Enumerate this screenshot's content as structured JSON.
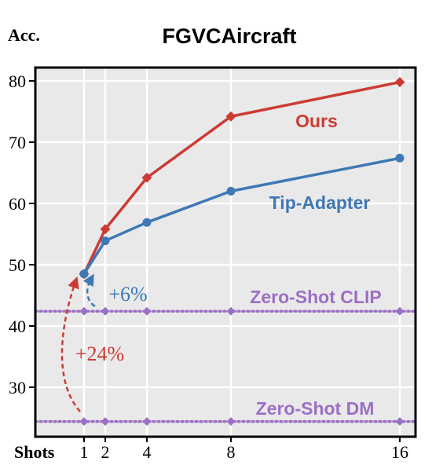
{
  "chart_data": {
    "type": "line",
    "title": "FGVCAircraft",
    "ylabel": "Acc.",
    "xlabel": "Shots",
    "x": [
      1,
      2,
      4,
      8,
      16
    ],
    "x_tick_labels": [
      "1",
      "2",
      "4",
      "8",
      "16"
    ],
    "ylim": [
      23,
      82
    ],
    "y_ticks": [
      30,
      40,
      50,
      60,
      70,
      80
    ],
    "grid": true,
    "series": [
      {
        "name": "Ours",
        "color": "#cc3b33",
        "marker": "diamond",
        "values": [
          48.5,
          55.8,
          64.2,
          74.2,
          79.8
        ]
      },
      {
        "name": "Tip-Adapter",
        "color": "#3e78b5",
        "marker": "circle",
        "values": [
          48.5,
          53.9,
          56.9,
          62.0,
          67.4
        ]
      },
      {
        "name": "Zero-Shot CLIP",
        "color": "#9b6fc5",
        "marker": "diamond",
        "style": "dotted",
        "values": [
          42.4,
          42.4,
          42.4,
          42.4,
          42.4
        ]
      },
      {
        "name": "Zero-Shot DM",
        "color": "#9b6fc5",
        "marker": "diamond",
        "style": "dotted",
        "values": [
          24.4,
          24.4,
          24.4,
          24.4,
          24.4
        ]
      }
    ],
    "annotations": [
      {
        "text": "+6%",
        "color": "#3e78b5",
        "from_y": 42.4,
        "to_y": 48.5,
        "x": 1
      },
      {
        "text": "+24%",
        "color": "#cc3b33",
        "from_y": 24.4,
        "to_y": 48.5,
        "x": 1
      }
    ]
  }
}
